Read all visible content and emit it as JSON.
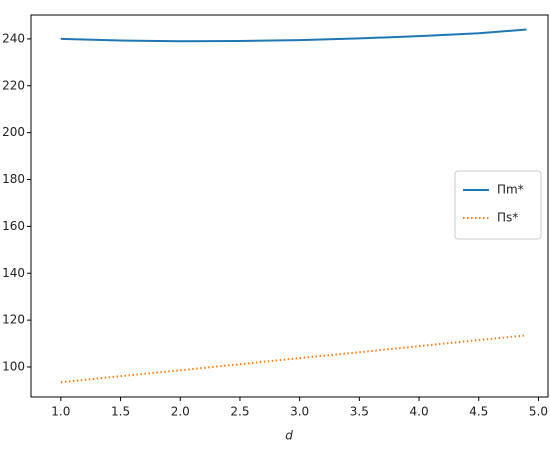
{
  "chart_data": {
    "type": "line",
    "x_label": "d",
    "x": [
      1.0,
      1.5,
      2.0,
      2.5,
      3.0,
      3.5,
      4.0,
      4.5,
      4.9
    ],
    "series": [
      {
        "name": "Πm*",
        "color": "#1f77b4",
        "dash": "solid",
        "values": [
          240,
          239.3,
          239,
          239.1,
          239.5,
          240.2,
          241.2,
          242.4,
          244
        ]
      },
      {
        "name": "Πs*",
        "color": "#ff7f0e",
        "dash": "dotted",
        "values": [
          93.5,
          96.1,
          98.6,
          101.2,
          103.8,
          106.3,
          108.9,
          111.5,
          113.5
        ]
      }
    ],
    "xlim": [
      0.75,
      5.08
    ],
    "xticks": [
      {
        "value": 1,
        "label": "1.0"
      },
      1.5,
      {
        "value": 2,
        "label": "2.0"
      },
      2.5,
      {
        "value": 3,
        "label": "3.0"
      },
      3.5,
      {
        "value": 4,
        "label": "4.0"
      },
      4.5,
      {
        "value": 5,
        "label": "5.0"
      }
    ],
    "ylim": [
      87.2,
      250.2
    ],
    "yticks": [
      100,
      120,
      140,
      160,
      180,
      200,
      220,
      240
    ],
    "legend": "center right"
  }
}
